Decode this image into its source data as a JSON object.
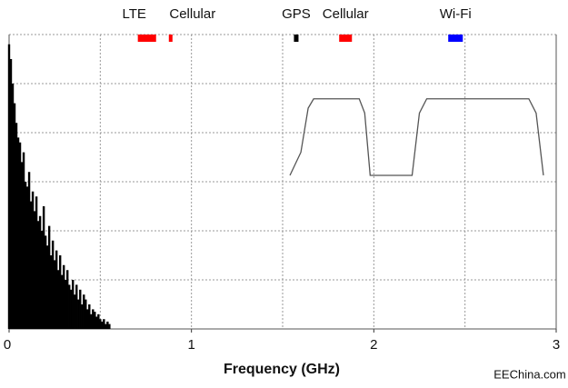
{
  "chart_data": {
    "type": "spectrum",
    "xlabel": "Frequency (GHz)",
    "watermark": "EEChina.com",
    "xlim": [
      0,
      3
    ],
    "xticks": [
      0,
      1,
      2,
      3
    ],
    "xgrid": [
      0.5,
      1,
      1.5,
      2,
      2.5
    ],
    "ylim": [
      0,
      6
    ],
    "yticks": [
      0,
      1,
      2,
      3,
      4,
      5,
      6
    ],
    "show_ytick_labels": false,
    "grid": true,
    "bands": [
      {
        "name": "LTE",
        "start": 0.706,
        "end": 0.806,
        "color": "#ff0000"
      },
      {
        "name": "Cellular",
        "start": 0.876,
        "end": 0.896,
        "color": "#ff0000"
      },
      {
        "name": "GPS",
        "start": 1.562,
        "end": 1.587,
        "color": "#000000"
      },
      {
        "name": "Cellular",
        "start": 1.81,
        "end": 1.88,
        "color": "#ff0000"
      },
      {
        "name": "Wi-Fi",
        "start": 2.408,
        "end": 2.488,
        "color": "#0000ff"
      }
    ],
    "noise": {
      "color": "#000000",
      "x": [
        0,
        0.01,
        0.02,
        0.03,
        0.04,
        0.05,
        0.06,
        0.07,
        0.08,
        0.09,
        0.1,
        0.11,
        0.12,
        0.13,
        0.14,
        0.15,
        0.16,
        0.17,
        0.18,
        0.19,
        0.2,
        0.21,
        0.22,
        0.23,
        0.24,
        0.25,
        0.26,
        0.27,
        0.28,
        0.29,
        0.3,
        0.31,
        0.32,
        0.33,
        0.34,
        0.35,
        0.36,
        0.37,
        0.38,
        0.39,
        0.4,
        0.41,
        0.42,
        0.43,
        0.44,
        0.45,
        0.46,
        0.47,
        0.48,
        0.49,
        0.5,
        0.51,
        0.52,
        0.53,
        0.54,
        0.55
      ],
      "values": [
        5.8,
        5.5,
        5.0,
        4.6,
        4.2,
        3.9,
        3.8,
        3.4,
        3.6,
        3.0,
        2.9,
        3.2,
        2.6,
        2.8,
        2.4,
        2.7,
        2.2,
        2.3,
        2.0,
        2.5,
        1.9,
        1.7,
        2.1,
        1.5,
        1.8,
        1.4,
        1.6,
        1.2,
        1.5,
        1.1,
        1.3,
        1.0,
        1.2,
        0.9,
        0.8,
        1.0,
        0.7,
        0.9,
        0.6,
        0.8,
        0.5,
        0.7,
        0.6,
        0.4,
        0.5,
        0.3,
        0.4,
        0.35,
        0.25,
        0.3,
        0.2,
        0.15,
        0.2,
        0.1,
        0.15,
        0.1
      ]
    },
    "filter": {
      "color": "#555555",
      "x": [
        1.54,
        1.6,
        1.64,
        1.67,
        1.92,
        1.95,
        1.98,
        2.21,
        2.25,
        2.29,
        2.85,
        2.89,
        2.93
      ],
      "values": [
        3.13,
        3.6,
        4.5,
        4.69,
        4.69,
        4.4,
        3.13,
        3.13,
        4.4,
        4.69,
        4.69,
        4.4,
        3.13
      ]
    }
  }
}
